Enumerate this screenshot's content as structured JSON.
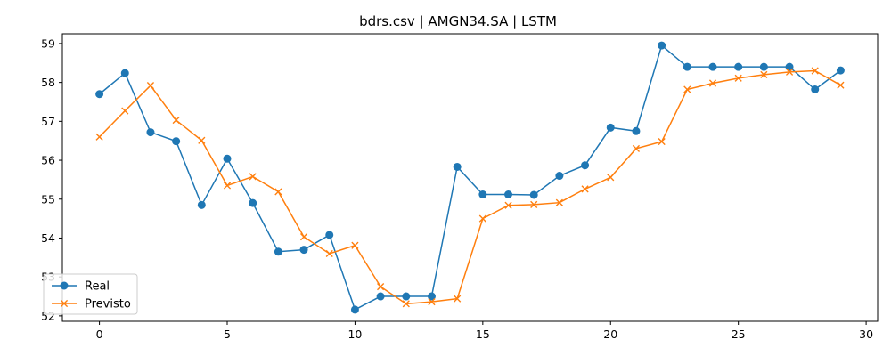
{
  "chart_data": {
    "type": "line",
    "title": "bdrs.csv | AMGN34.SA | LSTM",
    "xlabel": "",
    "ylabel": "",
    "xlim": [
      -1.45,
      30.45
    ],
    "ylim": [
      51.86,
      59.25
    ],
    "x_ticks": [
      0,
      5,
      10,
      15,
      20,
      25,
      30
    ],
    "y_ticks": [
      52,
      53,
      54,
      55,
      56,
      57,
      58,
      59
    ],
    "grid": false,
    "legend_position": "lower-left",
    "x": [
      0,
      1,
      2,
      3,
      4,
      5,
      6,
      7,
      8,
      9,
      10,
      11,
      12,
      13,
      14,
      15,
      16,
      17,
      18,
      19,
      20,
      21,
      22,
      23,
      24,
      25,
      26,
      27,
      28,
      29
    ],
    "series": [
      {
        "name": "Real",
        "marker": "circle",
        "color": "#1f77b4",
        "values": [
          57.7,
          58.24,
          56.72,
          56.49,
          54.85,
          56.04,
          54.9,
          53.65,
          53.7,
          54.08,
          52.16,
          52.5,
          52.5,
          52.5,
          55.83,
          55.12,
          55.12,
          55.11,
          55.6,
          55.87,
          56.84,
          56.75,
          58.95,
          58.4,
          58.4,
          58.4,
          58.4,
          58.4,
          57.82,
          58.31
        ]
      },
      {
        "name": "Previsto",
        "marker": "x",
        "color": "#ff7f0e",
        "values": [
          56.6,
          57.27,
          57.92,
          57.03,
          56.51,
          55.35,
          55.58,
          55.19,
          54.03,
          53.6,
          53.81,
          52.75,
          52.31,
          52.36,
          52.44,
          54.5,
          54.84,
          54.86,
          54.91,
          55.26,
          55.56,
          56.3,
          56.48,
          57.82,
          57.98,
          58.11,
          58.2,
          58.27,
          58.3,
          57.93
        ]
      }
    ]
  }
}
